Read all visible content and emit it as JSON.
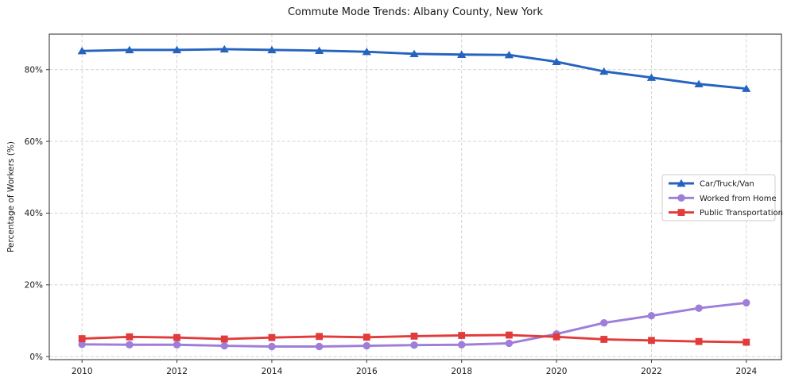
{
  "figure": {
    "background": "#ffffff"
  },
  "chart_data": {
    "type": "line",
    "title": "Commute Mode Trends: Albany County, New York",
    "xlabel": "",
    "ylabel": "Percentage of Workers (%)",
    "x": [
      2010,
      2011,
      2012,
      2013,
      2014,
      2015,
      2016,
      2017,
      2018,
      2019,
      2020,
      2021,
      2022,
      2023,
      2024
    ],
    "series": [
      {
        "name": "Car/Truck/Van",
        "marker": "triangle",
        "color": "#2563c0",
        "values": [
          85.2,
          85.5,
          85.5,
          85.7,
          85.5,
          85.3,
          85.0,
          84.4,
          84.2,
          84.1,
          82.2,
          79.5,
          77.8,
          76.0,
          74.7
        ]
      },
      {
        "name": "Worked from Home",
        "marker": "circle",
        "color": "#9e7ed9",
        "values": [
          3.4,
          3.3,
          3.3,
          3.0,
          2.8,
          2.8,
          3.0,
          3.2,
          3.3,
          3.7,
          6.3,
          9.4,
          11.4,
          13.5,
          15.0
        ]
      },
      {
        "name": "Public Transportation",
        "marker": "square",
        "color": "#e23b3b",
        "values": [
          5.0,
          5.5,
          5.3,
          4.9,
          5.3,
          5.6,
          5.4,
          5.7,
          5.9,
          6.0,
          5.5,
          4.8,
          4.5,
          4.2,
          4.0
        ]
      }
    ],
    "xticks": [
      2010,
      2012,
      2014,
      2016,
      2018,
      2020,
      2022,
      2024
    ],
    "yticks": [
      0,
      20,
      40,
      60,
      80
    ],
    "ytick_labels": [
      "0%",
      "20%",
      "40%",
      "60%",
      "80%"
    ],
    "xlim": [
      2009.31,
      2024.74
    ],
    "ylim": [
      -0.85,
      89.9
    ],
    "grid": true,
    "grid_style": "dashed",
    "legend_position": "center-right",
    "colors": {
      "grid": "#cfcfcf",
      "spine": "#3a3a3a",
      "tick_text": "#1a1a1a",
      "legend_border": "#cccccc",
      "legend_bg": "#ffffff"
    }
  }
}
